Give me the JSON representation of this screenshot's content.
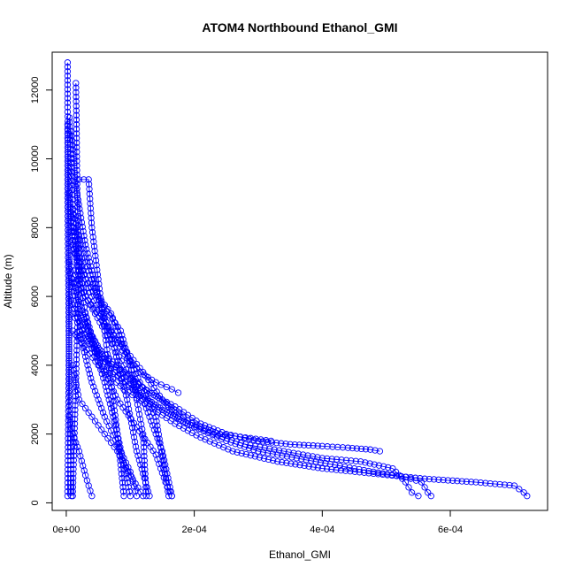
{
  "chart_data": {
    "type": "scatter",
    "title": "ATOM4 Northbound Ethanol_GMI",
    "xlabel": "Ethanol_GMI",
    "ylabel": "Altitude (m)",
    "xlim": [
      -2.2e-05,
      0.000752
    ],
    "ylim": [
      -220,
      13100
    ],
    "x_ticks": [
      0,
      0.0002,
      0.0004,
      0.0006
    ],
    "x_tick_labels": [
      "0e+00",
      "2e-04",
      "4e-04",
      "6e-04"
    ],
    "y_ticks": [
      0,
      2000,
      4000,
      6000,
      8000,
      10000,
      12000
    ],
    "y_tick_labels": [
      "0",
      "2000",
      "4000",
      "6000",
      "8000",
      "10000",
      "12000"
    ],
    "grid": false,
    "marker": "open-circle",
    "color": "#0000ff",
    "series": [
      {
        "x": [
          2e-06,
          2e-06,
          3e-06,
          4e-06,
          5e-06,
          4e-06,
          3e-06,
          2e-06
        ],
        "y": [
          12800,
          11500,
          10000,
          8000,
          6000,
          4000,
          2000,
          200
        ]
      },
      {
        "x": [
          1.5e-05,
          1.6e-05,
          1.7e-05,
          2e-05,
          1.8e-05,
          1.5e-05,
          1.2e-05,
          1e-05
        ],
        "y": [
          12200,
          11000,
          9000,
          7000,
          5500,
          3500,
          1500,
          200
        ]
      },
      {
        "x": [
          5e-06,
          8e-06,
          1.2e-05,
          2e-05,
          3.5e-05,
          6e-05,
          8e-05,
          0.0001
        ],
        "y": [
          11200,
          9500,
          8000,
          6500,
          5000,
          3500,
          2000,
          200
        ]
      },
      {
        "x": [
          8e-06,
          1.5e-05,
          3e-05,
          5e-05,
          7.5e-05,
          9.5e-05,
          0.00011,
          0.00013
        ],
        "y": [
          10800,
          9200,
          7500,
          6000,
          4500,
          3000,
          1500,
          200
        ]
      },
      {
        "x": [
          2e-05,
          3.5e-05,
          4e-05,
          5e-05,
          6e-05,
          7e-05,
          8e-05,
          9e-05
        ],
        "y": [
          9400,
          9400,
          8000,
          6500,
          5000,
          3500,
          2000,
          200
        ]
      },
      {
        "x": [
          5e-06,
          1e-05,
          3e-05,
          6e-05,
          9e-05,
          0.00012,
          0.00015,
          0.000165
        ],
        "y": [
          9000,
          7500,
          6000,
          5000,
          4000,
          3000,
          1500,
          200
        ]
      },
      {
        "x": [
          1e-05,
          3e-05,
          5e-05,
          7e-05,
          9e-05,
          0.000115,
          0.00014,
          0.00016
        ],
        "y": [
          8500,
          7000,
          6000,
          5500,
          4500,
          3500,
          2500,
          200
        ]
      },
      {
        "x": [
          1e-05,
          3e-05,
          5.5e-05,
          8.5e-05,
          0.0001,
          0.00011,
          0.00012,
          0.000125
        ],
        "y": [
          8000,
          6500,
          5800,
          5000,
          4000,
          3000,
          2000,
          200
        ]
      },
      {
        "x": [
          1e-05,
          4e-05,
          7e-05,
          9.5e-05,
          0.000115,
          0.00014,
          0.000165,
          0.000175
        ],
        "y": [
          7500,
          6000,
          5000,
          4200,
          3800,
          3500,
          3300,
          3200
        ]
      },
      {
        "x": [
          5e-06,
          3e-05,
          6e-05,
          9e-05,
          0.00012,
          0.00015,
          0.000175
        ],
        "y": [
          7000,
          6000,
          5200,
          4500,
          3800,
          3000,
          2500
        ]
      },
      {
        "x": [
          2e-06,
          2e-06,
          3e-06,
          4e-06,
          5e-06,
          6e-06,
          8e-06
        ],
        "y": [
          11000,
          9000,
          7000,
          5000,
          3400,
          2000,
          200
        ]
      },
      {
        "x": [
          1e-05,
          3e-05,
          6e-05,
          0.0001,
          0.00014,
          0.00017,
          0.00019,
          0.00021,
          0.00024,
          0.00028,
          0.00032
        ],
        "y": [
          6500,
          5200,
          4200,
          3600,
          3100,
          2700,
          2400,
          2200,
          2000,
          1900,
          1800
        ]
      },
      {
        "x": [
          5e-06,
          2e-05,
          5e-05,
          9e-05,
          0.00013,
          0.00017,
          0.00021,
          0.00025,
          0.0003,
          0.00035,
          0.0004,
          0.00044,
          0.000475,
          0.00049
        ],
        "y": [
          6800,
          5500,
          4500,
          3800,
          3200,
          2800,
          2300,
          2000,
          1800,
          1700,
          1650,
          1600,
          1550,
          1500
        ]
      },
      {
        "x": [
          5e-06,
          3e-05,
          7e-05,
          0.00011,
          0.00015,
          0.00019,
          0.00023,
          0.00028,
          0.00034,
          0.0004,
          0.00046,
          0.00051,
          0.00053,
          0.00054,
          0.00055
        ],
        "y": [
          6000,
          4800,
          3900,
          3200,
          2700,
          2300,
          2000,
          1700,
          1500,
          1300,
          1200,
          1000,
          600,
          300,
          200
        ]
      },
      {
        "x": [
          1e-05,
          4e-05,
          8e-05,
          0.00012,
          0.00016,
          0.0002,
          0.00025,
          0.0003,
          0.00036,
          0.00042,
          0.00048,
          0.00053,
          0.000555,
          0.000565,
          0.00057
        ],
        "y": [
          5500,
          4500,
          3700,
          3100,
          2600,
          2200,
          1800,
          1500,
          1300,
          1100,
          900,
          750,
          600,
          300,
          200
        ]
      },
      {
        "x": [
          1e-05,
          5e-05,
          9e-05,
          0.00013,
          0.00017,
          0.00021,
          0.00026,
          0.00033,
          0.0004,
          0.00048,
          0.00056,
          0.00064,
          0.0007,
          0.000715,
          0.00072
        ],
        "y": [
          5000,
          4000,
          3300,
          2800,
          2300,
          1900,
          1500,
          1200,
          1000,
          850,
          700,
          600,
          500,
          300,
          200
        ]
      },
      {
        "x": [
          1e-05,
          2e-05,
          4e-05,
          6e-05,
          8e-05,
          0.0001,
          0.00012
        ],
        "y": [
          4000,
          3000,
          2500,
          2000,
          1500,
          800,
          200
        ]
      },
      {
        "x": [
          2e-05,
          4e-05,
          6e-05,
          8e-05,
          0.0001,
          0.00011
        ],
        "y": [
          5000,
          3500,
          2500,
          1700,
          900,
          200
        ]
      },
      {
        "x": [
          3e-05,
          5e-05,
          8e-05,
          0.00011,
          0.00014,
          0.000155,
          0.000165
        ],
        "y": [
          5500,
          4200,
          3000,
          2200,
          1400,
          600,
          200
        ]
      },
      {
        "x": [
          5e-06,
          1e-05,
          2e-05,
          3e-05,
          4e-05
        ],
        "y": [
          2500,
          2000,
          1500,
          800,
          200
        ]
      }
    ]
  }
}
